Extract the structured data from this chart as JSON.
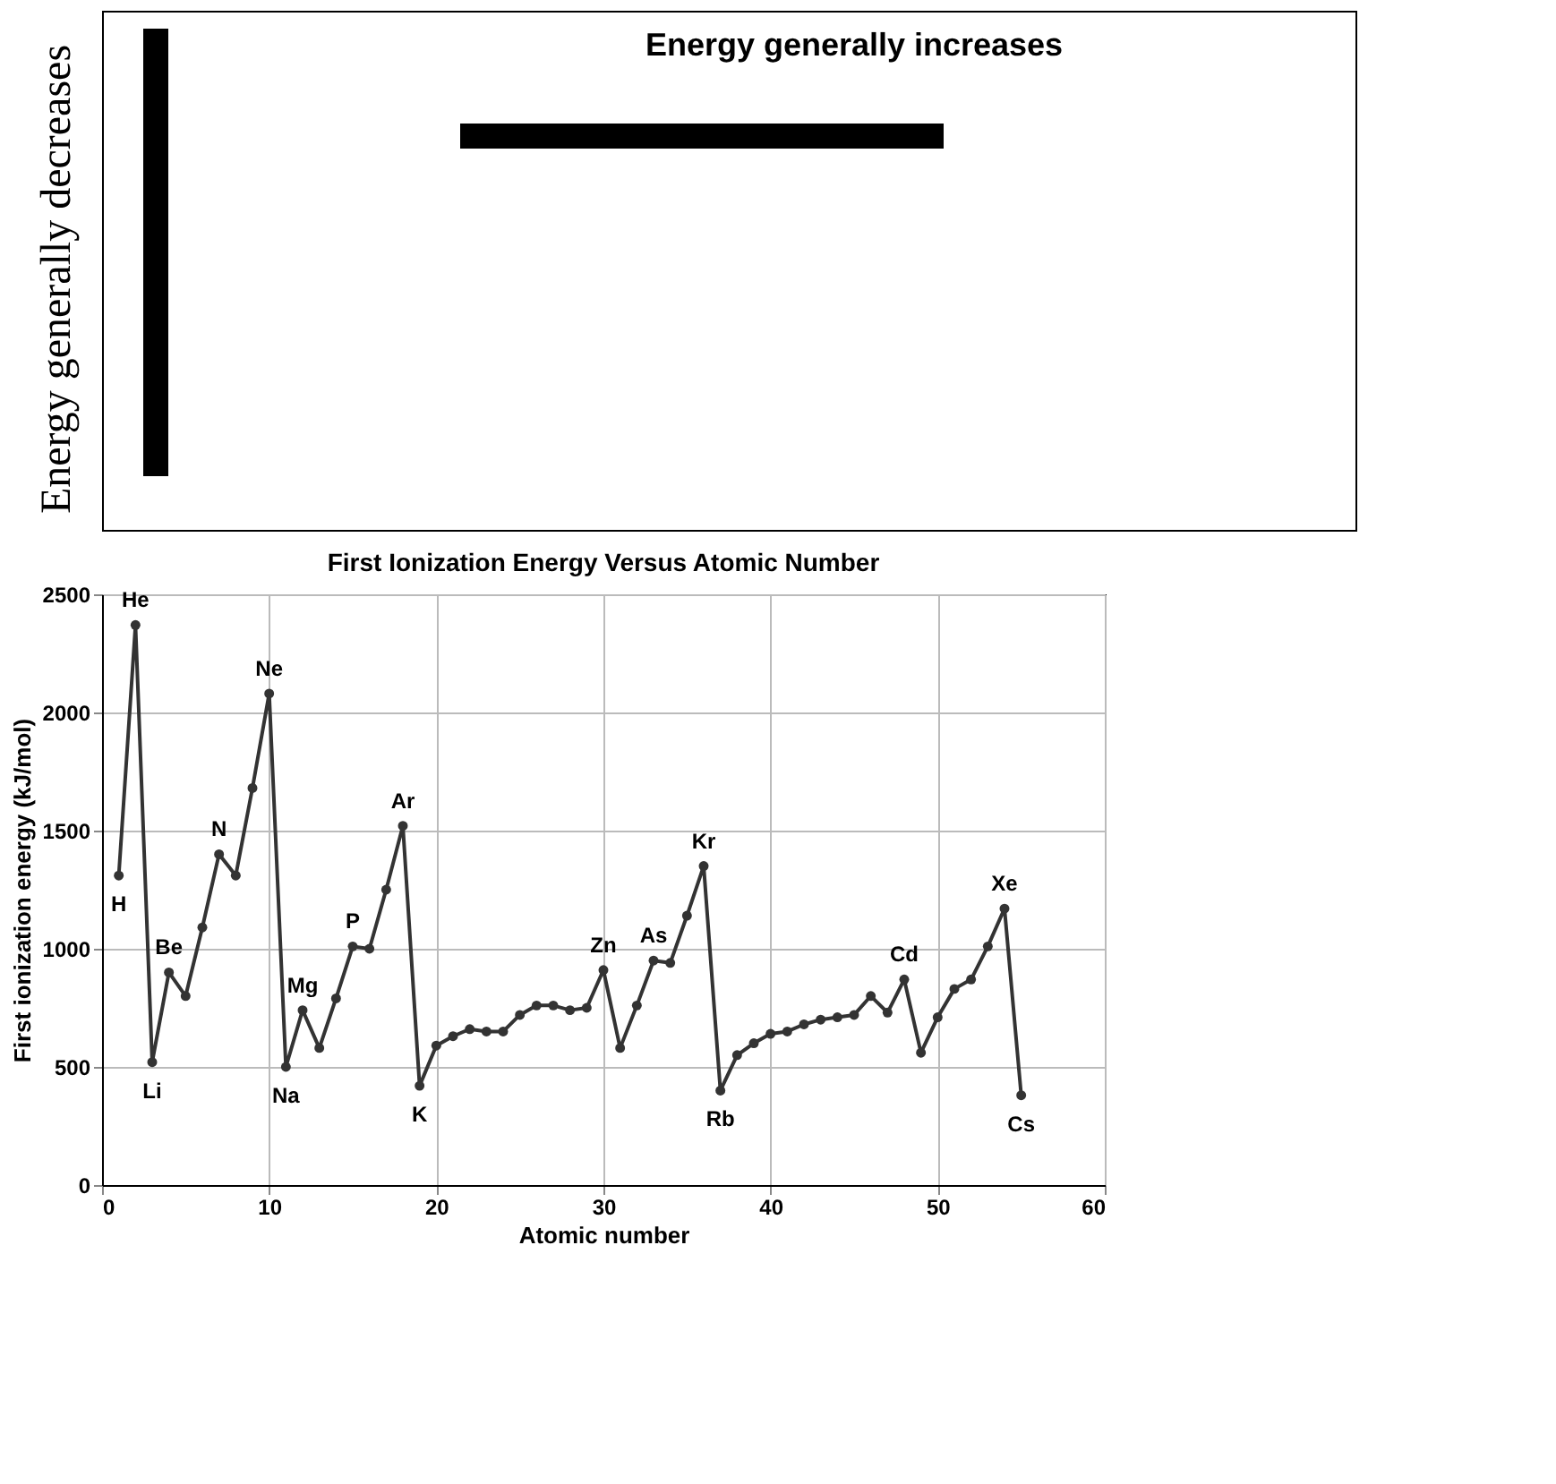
{
  "chart_data": {
    "type": "line",
    "title": "First Ionization Energy Versus Atomic Number",
    "xlabel": "Atomic number",
    "ylabel": "First ionization energy (kJ/mol)",
    "x": [
      1,
      2,
      3,
      4,
      5,
      6,
      7,
      8,
      9,
      10,
      11,
      12,
      13,
      14,
      15,
      16,
      17,
      18,
      19,
      20,
      21,
      22,
      23,
      24,
      25,
      26,
      27,
      28,
      29,
      30,
      31,
      32,
      33,
      34,
      35,
      36,
      37,
      38,
      39,
      40,
      41,
      42,
      43,
      44,
      45,
      46,
      47,
      48,
      49,
      50,
      51,
      52,
      53,
      54,
      55
    ],
    "series": [
      {
        "color": "#333333",
        "values": [
          1310,
          2370,
          520,
          900,
          800,
          1090,
          1400,
          1310,
          1680,
          2080,
          500,
          740,
          580,
          790,
          1010,
          1000,
          1250,
          1520,
          420,
          590,
          630,
          660,
          650,
          650,
          720,
          760,
          760,
          740,
          750,
          910,
          580,
          760,
          950,
          940,
          1140,
          1350,
          400,
          550,
          600,
          640,
          650,
          680,
          700,
          710,
          720,
          800,
          730,
          870,
          560,
          710,
          830,
          870,
          1010,
          1170,
          380
        ]
      }
    ],
    "xlim": [
      0,
      60
    ],
    "xticks": [
      0,
      10,
      20,
      30,
      40,
      50,
      60
    ],
    "ylim": [
      0,
      2500
    ],
    "yticks": [
      0,
      500,
      1000,
      1500,
      2000,
      2500
    ],
    "grid": true,
    "marker": "circle",
    "line_style": "solid",
    "annotations": [
      "Energy generally increases",
      "Energy generally decreases",
      {
        "text": "H",
        "x": 1,
        "y": 1310
      },
      {
        "text": "He",
        "x": 2,
        "y": 2370
      },
      {
        "text": "Li",
        "x": 3,
        "y": 520
      },
      {
        "text": "Be",
        "x": 4,
        "y": 900
      },
      {
        "text": "N",
        "x": 7,
        "y": 1400
      },
      {
        "text": "Ne",
        "x": 10,
        "y": 2080
      },
      {
        "text": "Na",
        "x": 11,
        "y": 500
      },
      {
        "text": "Mg",
        "x": 12,
        "y": 740
      },
      {
        "text": "P",
        "x": 15,
        "y": 1010
      },
      {
        "text": "Ar",
        "x": 18,
        "y": 1520
      },
      {
        "text": "K",
        "x": 19,
        "y": 420
      },
      {
        "text": "Zn",
        "x": 30,
        "y": 910
      },
      {
        "text": "As",
        "x": 33,
        "y": 950
      },
      {
        "text": "Kr",
        "x": 36,
        "y": 1350
      },
      {
        "text": "Rb",
        "x": 37,
        "y": 400
      },
      {
        "text": "Cd",
        "x": 48,
        "y": 870
      },
      {
        "text": "Xe",
        "x": 54,
        "y": 1170
      },
      {
        "text": "Cs",
        "x": 55,
        "y": 380
      }
    ]
  }
}
